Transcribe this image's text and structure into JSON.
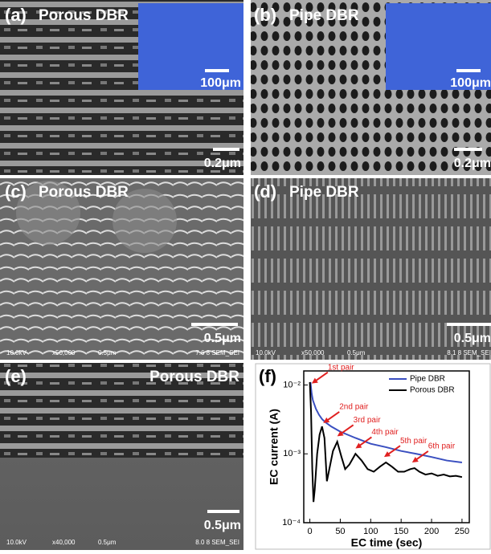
{
  "panels": [
    {
      "label": "(a)",
      "title": "Porous DBR",
      "inset_scale": "100μm",
      "scale": "0.2μm"
    },
    {
      "label": "(b)",
      "title": "Pipe DBR",
      "inset_scale": "100μm",
      "scale": "0.2μm"
    },
    {
      "label": "(c)",
      "title": "Porous DBR",
      "scale": "0.5μm",
      "footer": [
        "10.0kV",
        "x50,000",
        "0.5μm",
        "7.6 8 SEM_SEI"
      ]
    },
    {
      "label": "(d)",
      "title": "Pipe DBR",
      "scale": "0.5μm",
      "footer": [
        "10.0kV",
        "x50,000",
        "0.5μm",
        "8.1 8 SEM_SEI"
      ]
    },
    {
      "label": "(e)",
      "title": "Porous DBR",
      "scale": "0.5μm",
      "footer": [
        "10.0kV",
        "x40,000",
        "0.5μm",
        "8.0 8 SEM_SEI"
      ]
    }
  ],
  "chart_data": {
    "type": "line",
    "label": "(f)",
    "xlabel": "EC time (sec)",
    "ylabel": "EC current (A)",
    "xlim": [
      -10,
      262
    ],
    "xticks": [
      0,
      50,
      100,
      150,
      200,
      250
    ],
    "ylim": [
      0.0001,
      0.016
    ],
    "yscale": "log",
    "yticks": [
      {
        "value": 0.0001,
        "label": "10⁻⁴"
      },
      {
        "value": 0.001,
        "label": "10⁻³"
      },
      {
        "value": 0.01,
        "label": "10⁻²"
      }
    ],
    "legend": "upper right",
    "series": [
      {
        "name": "Pipe DBR",
        "color": "#3a4fc0",
        "x": [
          1,
          3,
          5,
          10,
          15,
          20,
          25,
          35,
          50,
          75,
          100,
          125,
          150,
          175,
          200,
          225,
          250
        ],
        "values": [
          0.011,
          0.0075,
          0.006,
          0.0045,
          0.0037,
          0.0032,
          0.0029,
          0.0025,
          0.0021,
          0.0017,
          0.0014,
          0.00125,
          0.0011,
          0.001,
          0.0009,
          0.0008,
          0.00075
        ]
      },
      {
        "name": "Porous DBR",
        "color": "#000000",
        "x": [
          0,
          2,
          4,
          6,
          8,
          12,
          16,
          20,
          24,
          28,
          32,
          38,
          45,
          52,
          58,
          65,
          75,
          85,
          95,
          105,
          115,
          125,
          135,
          145,
          155,
          165,
          172,
          180,
          190,
          200,
          210,
          220,
          230,
          240,
          250
        ],
        "values": [
          0.011,
          0.004,
          0.0006,
          0.0002,
          0.0003,
          0.001,
          0.0019,
          0.0025,
          0.0017,
          0.0004,
          0.0006,
          0.0011,
          0.0015,
          0.0009,
          0.0006,
          0.0007,
          0.001,
          0.0008,
          0.0006,
          0.00055,
          0.00065,
          0.00075,
          0.00065,
          0.00055,
          0.00055,
          0.0006,
          0.00062,
          0.00055,
          0.0005,
          0.00052,
          0.00048,
          0.0005,
          0.00047,
          0.00048,
          0.00046
        ]
      }
    ],
    "annotations": [
      {
        "text": "1st pair",
        "x": 3,
        "y": 0.0105
      },
      {
        "text": "2nd pair",
        "x": 22,
        "y": 0.0028
      },
      {
        "text": "3rd pair",
        "x": 45,
        "y": 0.0018
      },
      {
        "text": "4th pair",
        "x": 75,
        "y": 0.0012
      },
      {
        "text": "5th pair",
        "x": 122,
        "y": 0.0009
      },
      {
        "text": "6th pair",
        "x": 168,
        "y": 0.00075
      }
    ]
  }
}
